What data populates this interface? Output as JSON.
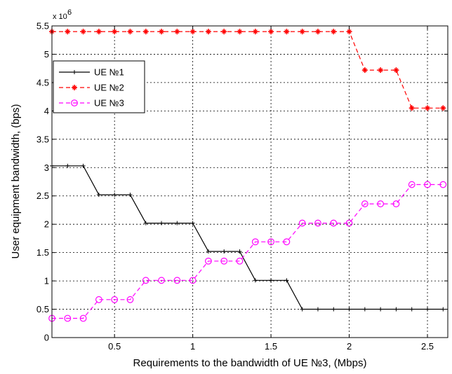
{
  "chart_data": {
    "type": "line",
    "title": "",
    "xlabel": "Requirements to the bandwidth of UE №3,  (Mbps)",
    "ylabel": "User equipment bandwidth,  (bps)",
    "y_multiplier_label": "x 10",
    "y_multiplier_exponent": "6",
    "xlim": [
      0.1,
      2.63
    ],
    "ylim": [
      0,
      5.5
    ],
    "x_ticks": [
      0.5,
      1,
      1.5,
      2,
      2.5
    ],
    "x_tick_labels": [
      "0.5",
      "1",
      "1.5",
      "2",
      "2.5"
    ],
    "y_ticks": [
      0,
      0.5,
      1,
      1.5,
      2,
      2.5,
      3,
      3.5,
      4,
      4.5,
      5,
      5.5
    ],
    "y_tick_labels": [
      "0",
      "0.5",
      "1",
      "1.5",
      "2",
      "2.5",
      "3",
      "3.5",
      "4",
      "4.5",
      "5",
      "5.5"
    ],
    "grid": true,
    "legend_position": "top-left",
    "series": [
      {
        "name": "UE №1",
        "color": "#000000",
        "line_style": "solid",
        "marker": "plus",
        "x": [
          0.1,
          0.2,
          0.3,
          0.4,
          0.5,
          0.6,
          0.7,
          0.8,
          0.9,
          1.0,
          1.1,
          1.2,
          1.3,
          1.4,
          1.5,
          1.6,
          1.7,
          1.8,
          1.9,
          2.0,
          2.1,
          2.2,
          2.3,
          2.4,
          2.5,
          2.6
        ],
        "values": [
          3.03,
          3.03,
          3.03,
          2.52,
          2.52,
          2.52,
          2.02,
          2.02,
          2.02,
          2.02,
          1.52,
          1.52,
          1.52,
          1.01,
          1.01,
          1.01,
          0.5,
          0.5,
          0.5,
          0.5,
          0.5,
          0.5,
          0.5,
          0.5,
          0.5,
          0.5
        ]
      },
      {
        "name": "UE №2",
        "color": "#ff0000",
        "line_style": "dashed",
        "marker": "star",
        "x": [
          0.1,
          0.2,
          0.3,
          0.4,
          0.5,
          0.6,
          0.7,
          0.8,
          0.9,
          1.0,
          1.1,
          1.2,
          1.3,
          1.4,
          1.5,
          1.6,
          1.7,
          1.8,
          1.9,
          2.0,
          2.1,
          2.2,
          2.3,
          2.4,
          2.5,
          2.6
        ],
        "values": [
          5.4,
          5.4,
          5.4,
          5.4,
          5.4,
          5.4,
          5.4,
          5.4,
          5.4,
          5.4,
          5.4,
          5.4,
          5.4,
          5.4,
          5.4,
          5.4,
          5.4,
          5.4,
          5.4,
          5.4,
          4.72,
          4.72,
          4.72,
          4.05,
          4.05,
          4.05
        ]
      },
      {
        "name": "UE №3",
        "color": "#ff00ff",
        "line_style": "dashed",
        "marker": "circle",
        "x": [
          0.1,
          0.2,
          0.3,
          0.4,
          0.5,
          0.6,
          0.7,
          0.8,
          0.9,
          1.0,
          1.1,
          1.2,
          1.3,
          1.4,
          1.5,
          1.6,
          1.7,
          1.8,
          1.9,
          2.0,
          2.1,
          2.2,
          2.3,
          2.4,
          2.5,
          2.6
        ],
        "values": [
          0.34,
          0.34,
          0.34,
          0.67,
          0.67,
          0.67,
          1.01,
          1.01,
          1.01,
          1.01,
          1.35,
          1.35,
          1.35,
          1.69,
          1.69,
          1.69,
          2.02,
          2.02,
          2.02,
          2.02,
          2.36,
          2.36,
          2.36,
          2.7,
          2.7,
          2.7
        ]
      }
    ]
  }
}
